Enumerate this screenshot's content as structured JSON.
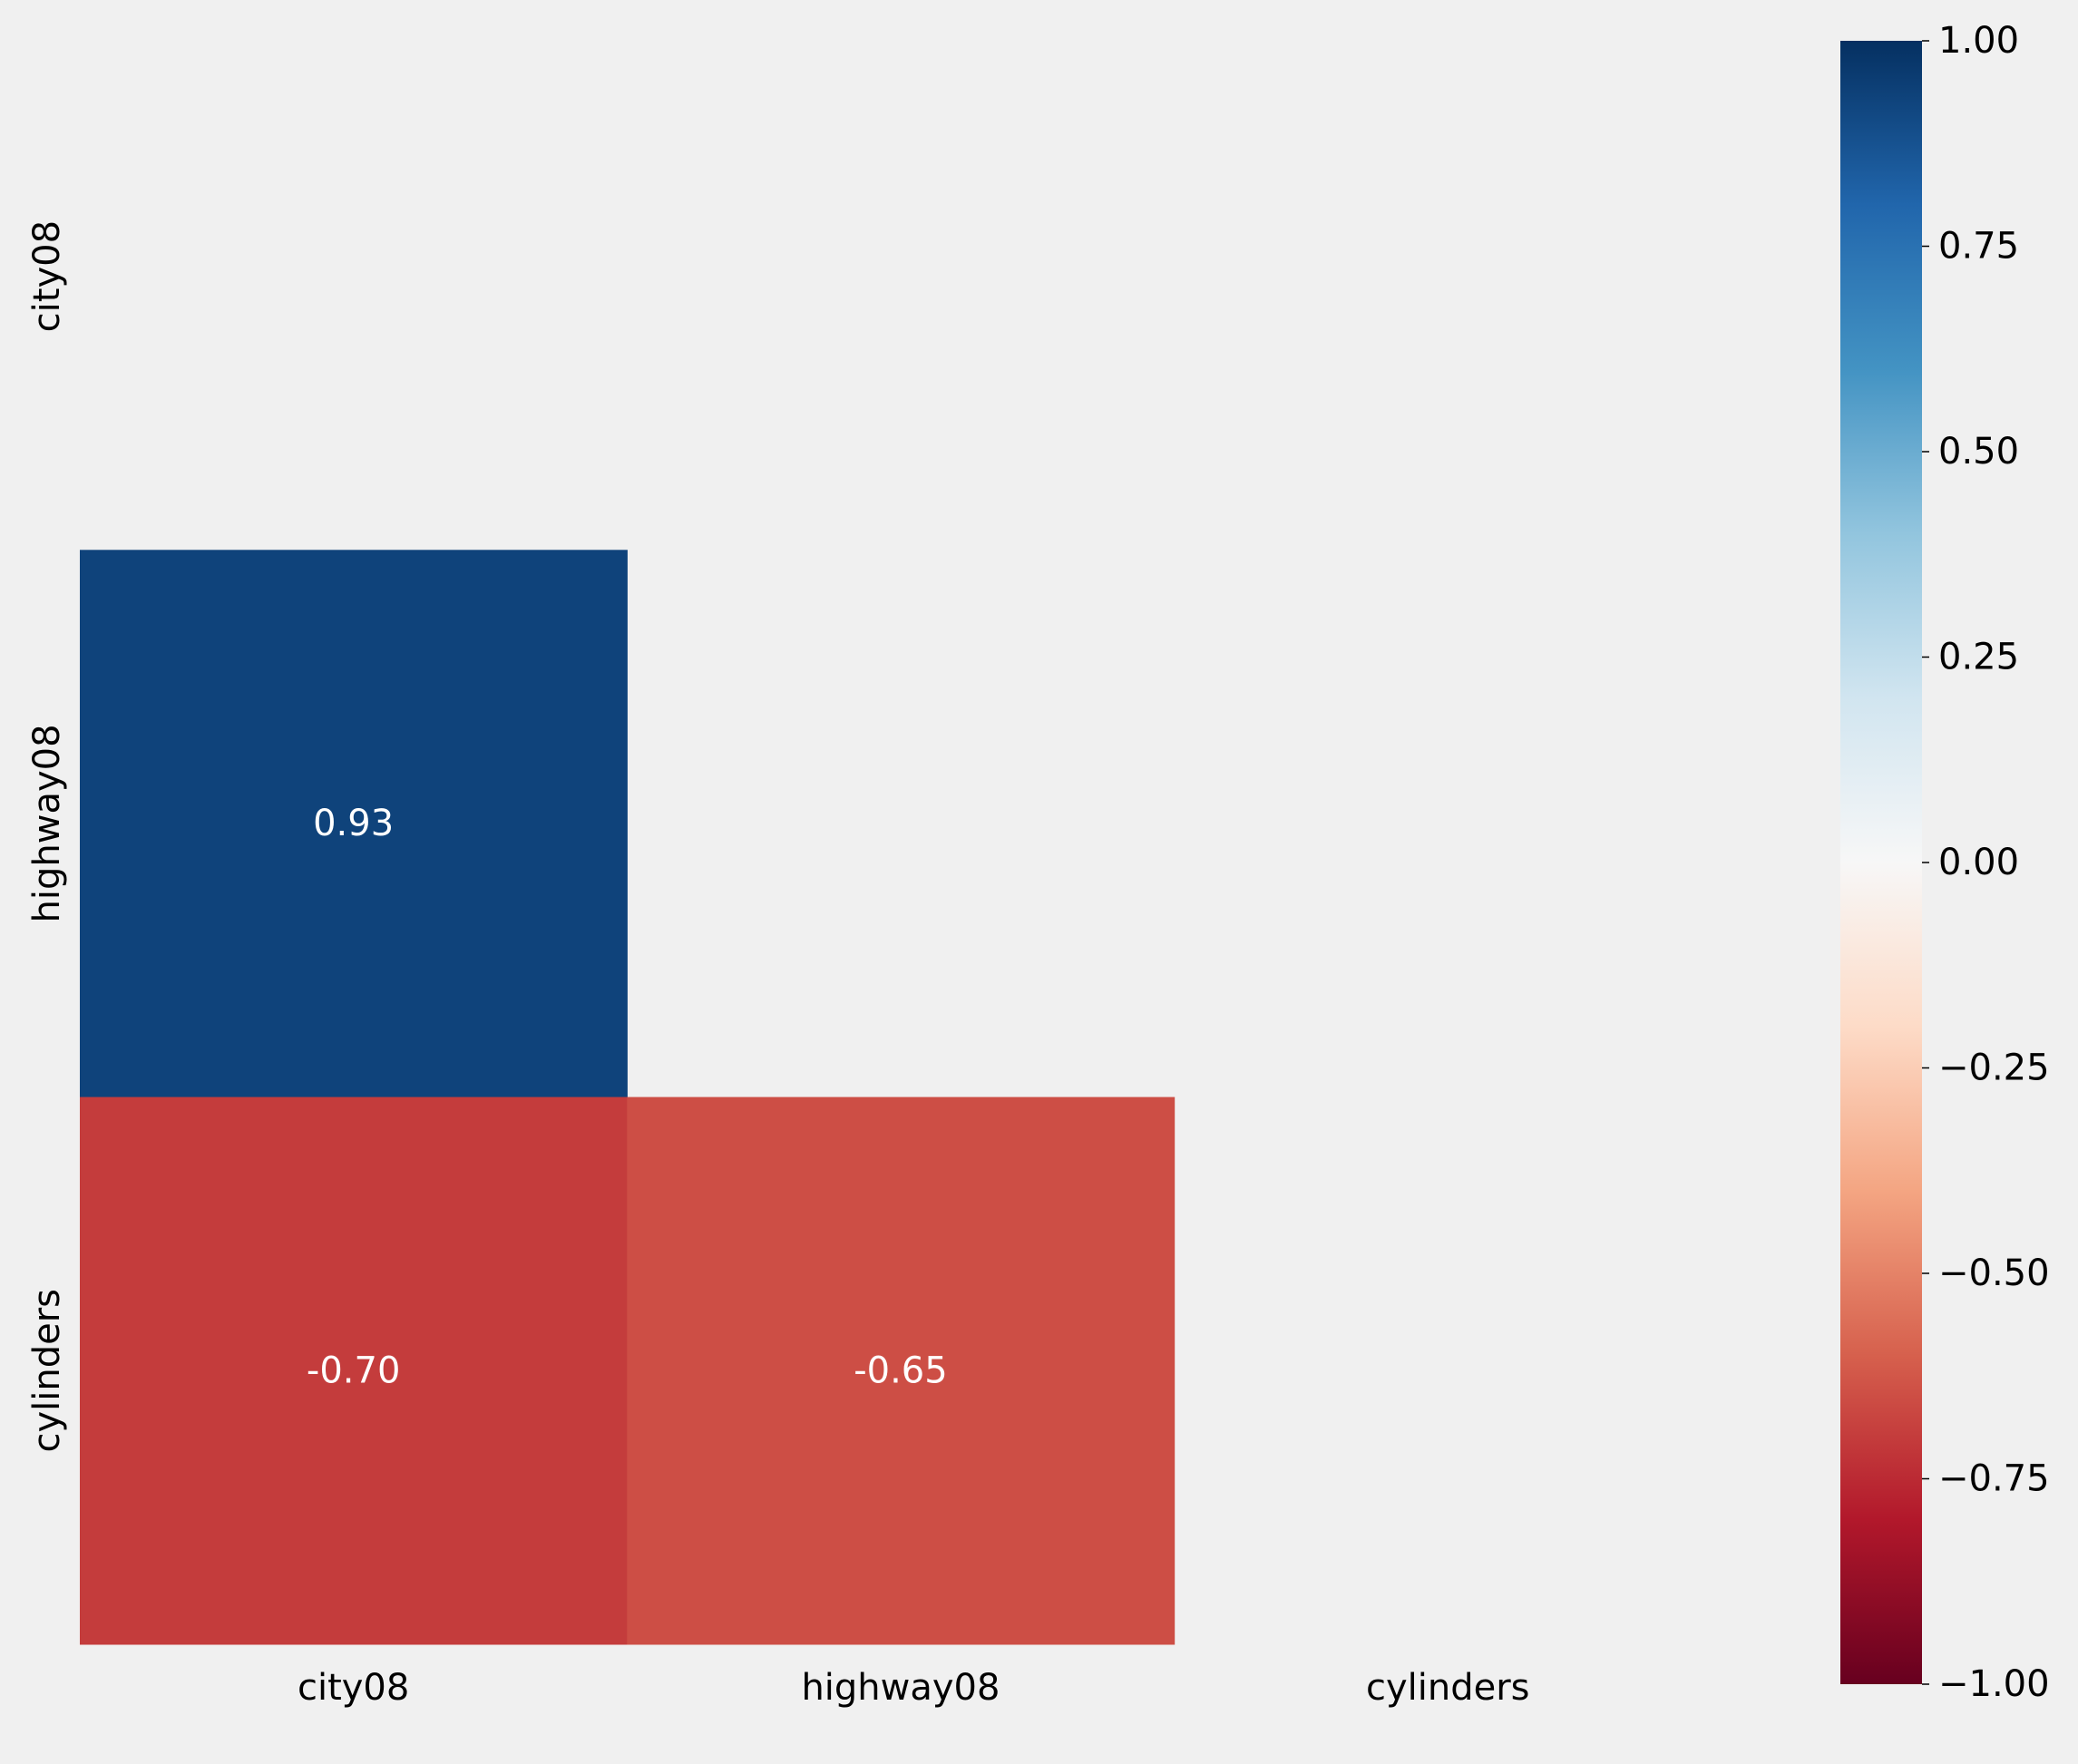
{
  "chart_data": {
    "type": "heatmap",
    "title": "",
    "xlabel": "",
    "ylabel": "",
    "x_categories": [
      "city08",
      "highway08",
      "cylinders"
    ],
    "y_categories": [
      "city08",
      "highway08",
      "cylinders"
    ],
    "mask": "upper triangle including diagonal",
    "cells": [
      {
        "row": "highway08",
        "col": "city08",
        "value": 0.93,
        "label": "0.93"
      },
      {
        "row": "cylinders",
        "col": "city08",
        "value": -0.7,
        "label": "-0.70"
      },
      {
        "row": "cylinders",
        "col": "highway08",
        "value": -0.65,
        "label": "-0.65"
      }
    ],
    "colormap": "RdBu",
    "vmin": -1.0,
    "vmax": 1.0,
    "colorbar": {
      "ticks": [
        1.0,
        0.75,
        0.5,
        0.25,
        0.0,
        -0.25,
        -0.5,
        -0.75,
        -1.0
      ],
      "tick_labels": [
        "1.00",
        "0.75",
        "0.50",
        "0.25",
        "0.00",
        "−0.25",
        "−0.50",
        "−0.75",
        "−1.00"
      ],
      "position": "right"
    },
    "colors": {
      "background": "#f0f0f0",
      "cell_text": "#ffffff",
      "tick_text": "#000000",
      "colormap_stops": [
        "#67001f",
        "#b2182b",
        "#d6604d",
        "#f4a582",
        "#fddbc7",
        "#f7f7f7",
        "#d1e5f0",
        "#92c5de",
        "#4393c3",
        "#2166ac",
        "#053061"
      ]
    }
  }
}
